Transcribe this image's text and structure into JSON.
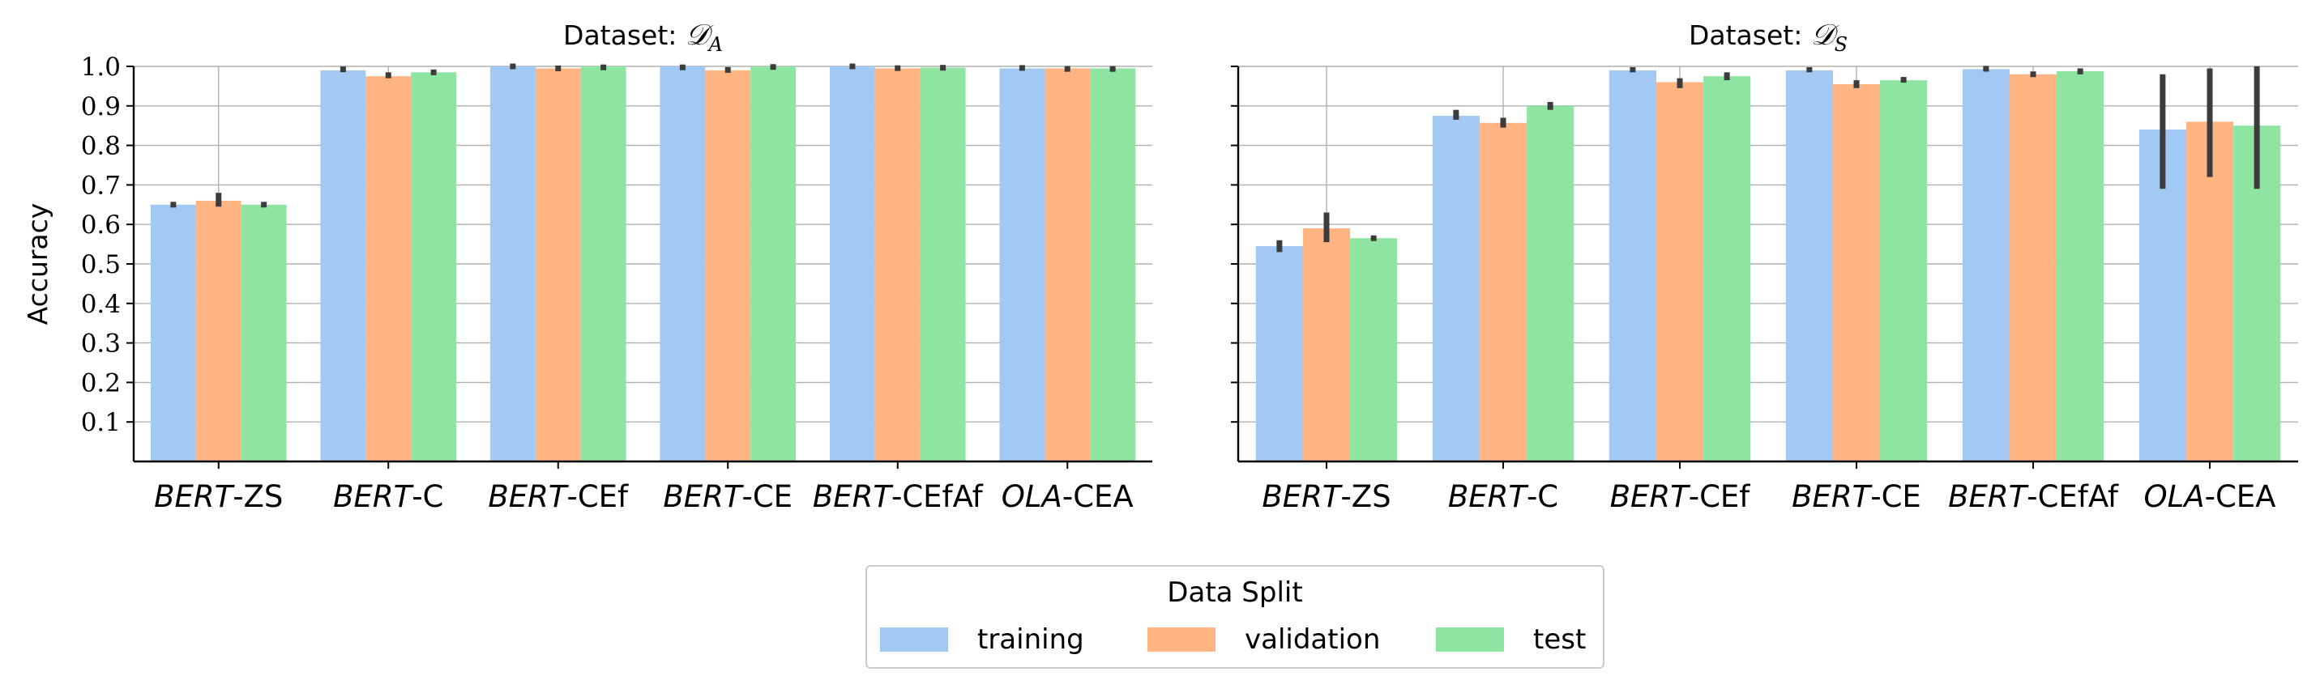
{
  "chart_data": [
    {
      "type": "bar",
      "title": "Dataset: 𝒟_A",
      "title_prefix": "Dataset: ",
      "title_symbol": "𝒟",
      "title_sub": "A",
      "ylabel": "Accuracy",
      "ylim": [
        0,
        1.0
      ],
      "yticks": [
        0.1,
        0.2,
        0.3,
        0.4,
        0.5,
        0.6,
        0.7,
        0.8,
        0.9,
        1.0
      ],
      "categories": [
        {
          "prefix": "BERT",
          "suffix": "-ZS"
        },
        {
          "prefix": "BERT",
          "suffix": "-C"
        },
        {
          "prefix": "BERT",
          "suffix": "-CEf"
        },
        {
          "prefix": "BERT",
          "suffix": "-CE"
        },
        {
          "prefix": "BERT",
          "suffix": "-CEfAf"
        },
        {
          "prefix": "OLA",
          "suffix": "-CEA"
        }
      ],
      "series": [
        {
          "name": "training",
          "values": [
            0.65,
            0.99,
            1.0,
            1.0,
            1.0,
            0.995
          ],
          "err_low": [
            0.645,
            0.99,
            1.0,
            0.995,
            1.0,
            0.995
          ],
          "err_high": [
            0.655,
            0.995,
            1.0,
            1.0,
            1.0,
            0.997
          ]
        },
        {
          "name": "validation",
          "values": [
            0.66,
            0.975,
            0.995,
            0.99,
            0.995,
            0.995
          ],
          "err_low": [
            0.645,
            0.97,
            0.99,
            0.985,
            0.993,
            0.99
          ],
          "err_high": [
            0.68,
            0.985,
            1.0,
            0.997,
            0.998,
            0.997
          ]
        },
        {
          "name": "test",
          "values": [
            0.65,
            0.985,
            1.0,
            1.0,
            0.997,
            0.995
          ],
          "err_low": [
            0.65,
            0.98,
            0.995,
            0.997,
            0.995,
            0.99
          ],
          "err_high": [
            0.65,
            0.99,
            1.0,
            1.0,
            0.998,
            0.997
          ]
        }
      ]
    },
    {
      "type": "bar",
      "title": "Dataset: 𝒟_S",
      "title_prefix": "Dataset: ",
      "title_symbol": "𝒟",
      "title_sub": "S",
      "ylabel": "",
      "ylim": [
        0,
        1.0
      ],
      "yticks": [
        0.1,
        0.2,
        0.3,
        0.4,
        0.5,
        0.6,
        0.7,
        0.8,
        0.9,
        1.0
      ],
      "categories": [
        {
          "prefix": "BERT",
          "suffix": "-ZS"
        },
        {
          "prefix": "BERT",
          "suffix": "-C"
        },
        {
          "prefix": "BERT",
          "suffix": "-CEf"
        },
        {
          "prefix": "BERT",
          "suffix": "-CE"
        },
        {
          "prefix": "BERT",
          "suffix": "-CEfAf"
        },
        {
          "prefix": "OLA",
          "suffix": "-CEA"
        }
      ],
      "series": [
        {
          "name": "training",
          "values": [
            0.545,
            0.875,
            0.99,
            0.99,
            0.993,
            0.84
          ],
          "err_low": [
            0.53,
            0.865,
            0.985,
            0.985,
            0.99,
            0.69
          ],
          "err_high": [
            0.56,
            0.89,
            0.998,
            0.998,
            0.998,
            0.98
          ]
        },
        {
          "name": "validation",
          "values": [
            0.59,
            0.857,
            0.96,
            0.955,
            0.98,
            0.86
          ],
          "err_low": [
            0.555,
            0.845,
            0.945,
            0.945,
            0.975,
            0.72
          ],
          "err_high": [
            0.63,
            0.87,
            0.97,
            0.965,
            0.985,
            0.995
          ]
        },
        {
          "name": "test",
          "values": [
            0.565,
            0.9,
            0.975,
            0.965,
            0.988,
            0.85
          ],
          "err_low": [
            0.565,
            0.89,
            0.965,
            0.96,
            0.98,
            0.69
          ],
          "err_high": [
            0.565,
            0.91,
            0.985,
            0.972,
            0.995,
            1.0
          ]
        }
      ]
    }
  ],
  "legend": {
    "title": "Data Split",
    "items": [
      {
        "label": "training",
        "color": "#a1c9f4"
      },
      {
        "label": "validation",
        "color": "#ffb482"
      },
      {
        "label": "test",
        "color": "#8de5a1"
      }
    ]
  },
  "colors": {
    "training": "#a1c9f4",
    "validation": "#ffb482",
    "test": "#8de5a1",
    "errorbar": "#3c3c3c",
    "grid": "#b0b0b0"
  }
}
